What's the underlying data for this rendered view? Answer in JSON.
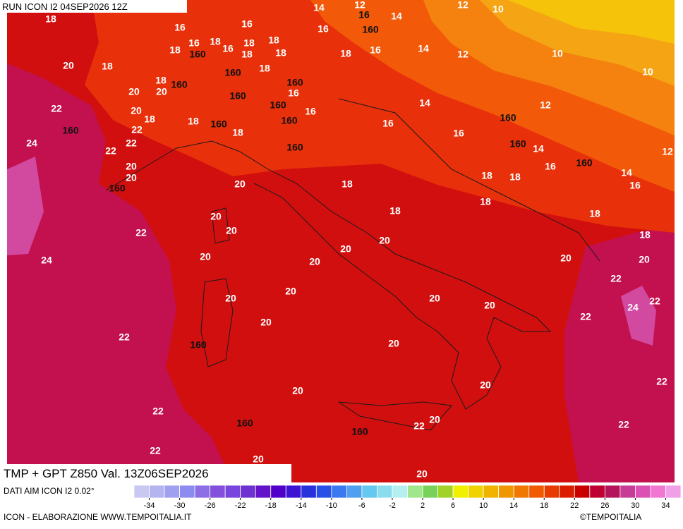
{
  "header": {
    "title": "RUN ICON I2 04SEP2026 12Z"
  },
  "footer": {
    "title": "TMP + GPT Z850 Val. 13Z06SEP2026",
    "source": "DATI AIM ICON I2 0.02°",
    "credit": "ICON - ELABORAZIONE WWW.TEMPOITALIA.IT",
    "copyright": "©TEMPOITALIA"
  },
  "colorbar": {
    "colors": [
      "#c8c8f0",
      "#b4b4f0",
      "#a0a0f0",
      "#8c8cf0",
      "#8c6ee6",
      "#8250dc",
      "#7846dc",
      "#6e32d2",
      "#6414c8",
      "#5000c8",
      "#3c14d2",
      "#2832dc",
      "#2850e6",
      "#3c78f0",
      "#50a0f0",
      "#64c8f0",
      "#8cdcf0",
      "#b4f0f0",
      "#a0e68c",
      "#78d25a",
      "#a0d228",
      "#f0f000",
      "#f0d200",
      "#f0b400",
      "#f09600",
      "#f07800",
      "#f05a00",
      "#e63c00",
      "#dc1e00",
      "#c80000",
      "#be0032",
      "#b4145a",
      "#c83c96",
      "#dc50b4",
      "#f078d2",
      "#f0a0e6"
    ],
    "ticks": [
      -34,
      -30,
      -26,
      -22,
      -18,
      -14,
      -10,
      -6,
      -2,
      2,
      6,
      10,
      14,
      18,
      22,
      26,
      30,
      34
    ]
  },
  "contour_labels": [
    "18",
    "14",
    "12",
    "16",
    "14",
    "12",
    "10",
    "16",
    "16",
    "16",
    "160",
    "18",
    "16",
    "18",
    "16",
    "18",
    "18",
    "18",
    "18",
    "160",
    "18",
    "16",
    "14",
    "12",
    "10",
    "10",
    "20",
    "18",
    "160",
    "18",
    "18",
    "160",
    "160",
    "20",
    "20",
    "160",
    "16",
    "14",
    "12",
    "22",
    "20",
    "18",
    "22",
    "160",
    "16",
    "160",
    "160",
    "160",
    "18",
    "160",
    "18",
    "16",
    "16",
    "24",
    "22",
    "22",
    "160",
    "160",
    "14",
    "12",
    "20",
    "16",
    "160",
    "14",
    "20",
    "18",
    "18",
    "16",
    "160",
    "20",
    "18",
    "18",
    "20",
    "18",
    "18",
    "22",
    "20",
    "18",
    "20",
    "20",
    "20",
    "24",
    "20",
    "20",
    "20",
    "22",
    "20",
    "20",
    "20",
    "22",
    "24",
    "20",
    "22",
    "20",
    "22",
    "160",
    "20",
    "22",
    "20",
    "20",
    "22",
    "160",
    "20",
    "22",
    "22",
    "160",
    "22",
    "20",
    "20"
  ]
}
